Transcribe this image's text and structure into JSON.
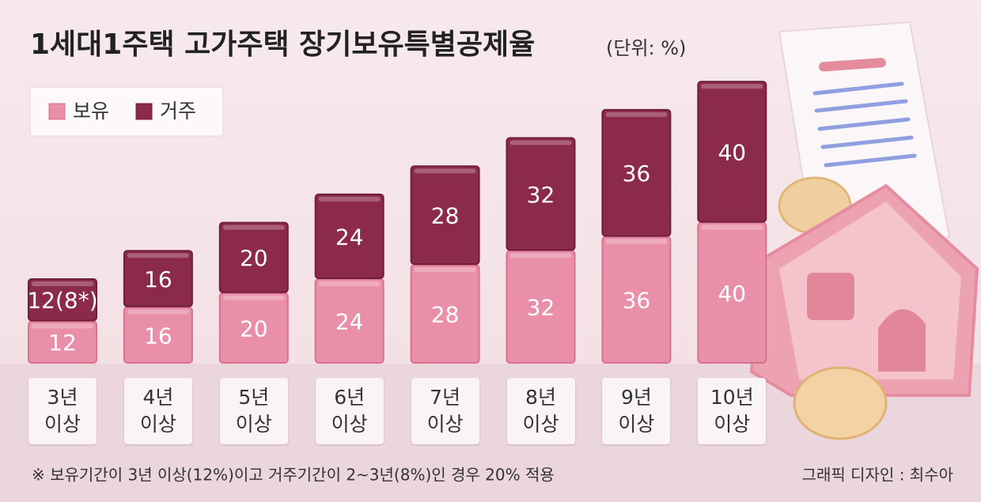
{
  "chart_data": {
    "type": "stacked_bar",
    "title": "1세대1주택 고가주택 장기보유특별공제율",
    "subtitle": "(단위: %)",
    "categories": [
      "3년 이상",
      "4년 이상",
      "5년 이상",
      "6년 이상",
      "7년 이상",
      "8년 이상",
      "9년 이상",
      "10년 이상"
    ],
    "series": [
      {
        "name": "보유",
        "color": "#e98fa9",
        "values": [
          12,
          16,
          20,
          24,
          28,
          32,
          36,
          40
        ]
      },
      {
        "name": "거주",
        "color": "#8c2a4c",
        "values": [
          12,
          16,
          20,
          24,
          28,
          32,
          36,
          40
        ],
        "value_labels": [
          "12(8*)",
          "16",
          "20",
          "24",
          "28",
          "32",
          "36",
          "40"
        ]
      }
    ],
    "footnote": "※ 보유기간이 3년 이상(12%)이고 거주기간이 2~3년(8%)인 경우 20% 적용",
    "credit": "그래픽 디자인 : 최수아"
  }
}
